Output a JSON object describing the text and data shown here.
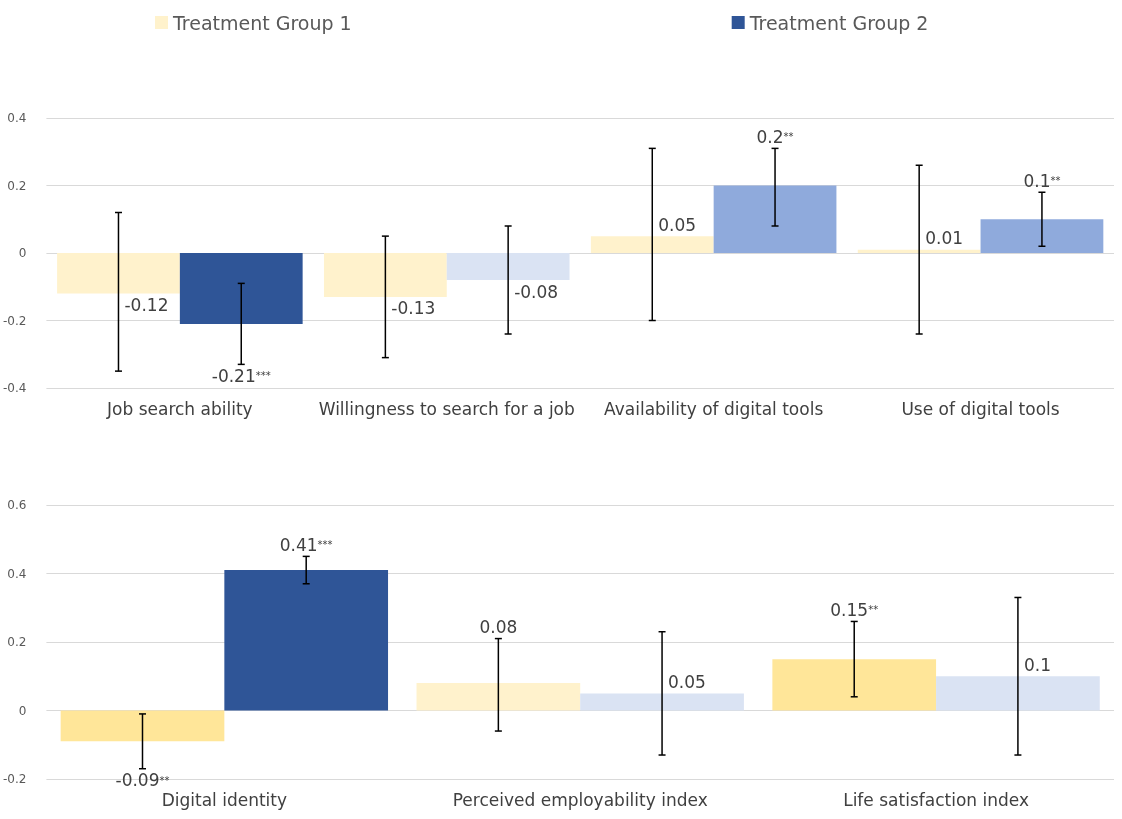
{
  "chart_data": [
    {
      "type": "bar",
      "categories": [
        "Job search ability",
        "Willingness to search for a job",
        "Availability of digital tools",
        "Use of digital tools"
      ],
      "series": [
        {
          "name": "Treatment Group 1",
          "color": "#fff2cc",
          "colors": [
            "#fff2cc",
            "#fff2cc",
            "#fff2cc",
            "#fff2cc"
          ],
          "values": [
            -0.12,
            -0.13,
            0.05,
            0.01
          ],
          "value_labels": [
            "-0.12",
            "-0.13",
            "0.05",
            "0.01"
          ],
          "errors": [
            [
              -0.35,
              0.12
            ],
            [
              -0.31,
              0.05
            ],
            [
              -0.2,
              0.31
            ],
            [
              -0.24,
              0.26
            ]
          ]
        },
        {
          "name": "Treatment Group 2",
          "color": "#2f5597",
          "colors": [
            "#2f5597",
            "#dae3f3",
            "#8faadc",
            "#8faadc"
          ],
          "values": [
            -0.21,
            -0.08,
            0.2,
            0.1
          ],
          "value_labels": [
            "-0.21***",
            "-0.08",
            "0.2**",
            "0.1**"
          ],
          "errors": [
            [
              -0.33,
              -0.09
            ],
            [
              -0.24,
              0.08
            ],
            [
              0.08,
              0.31
            ],
            [
              0.02,
              0.18
            ]
          ]
        }
      ],
      "ylim": [
        -0.4,
        0.4
      ],
      "yticks": [
        -0.4,
        -0.2,
        0,
        0.2,
        0.4
      ],
      "grid": "y",
      "legend": "top"
    },
    {
      "type": "bar",
      "categories": [
        "Digital identity",
        "Perceived employability index",
        "Life satisfaction index"
      ],
      "series": [
        {
          "color": "#ffe699",
          "colors": [
            "#ffe699",
            "#fff2cc",
            "#ffe699"
          ],
          "values": [
            -0.09,
            0.08,
            0.15
          ],
          "value_labels": [
            "-0.09**",
            "0.08",
            "0.15**"
          ],
          "errors": [
            [
              -0.17,
              -0.01
            ],
            [
              -0.06,
              0.21
            ],
            [
              0.04,
              0.26
            ]
          ]
        },
        {
          "color": "#2f5597",
          "colors": [
            "#2f5597",
            "#dae3f3",
            "#dae3f3"
          ],
          "values": [
            0.41,
            0.05,
            0.1
          ],
          "value_labels": [
            "0.41***",
            "0.05",
            "0.1"
          ],
          "errors": [
            [
              0.37,
              0.45
            ],
            [
              -0.13,
              0.23
            ],
            [
              -0.13,
              0.33
            ]
          ]
        }
      ],
      "ylim": [
        -0.2,
        0.6
      ],
      "yticks": [
        -0.2,
        0,
        0.2,
        0.4,
        0.6
      ],
      "grid": "y"
    }
  ]
}
